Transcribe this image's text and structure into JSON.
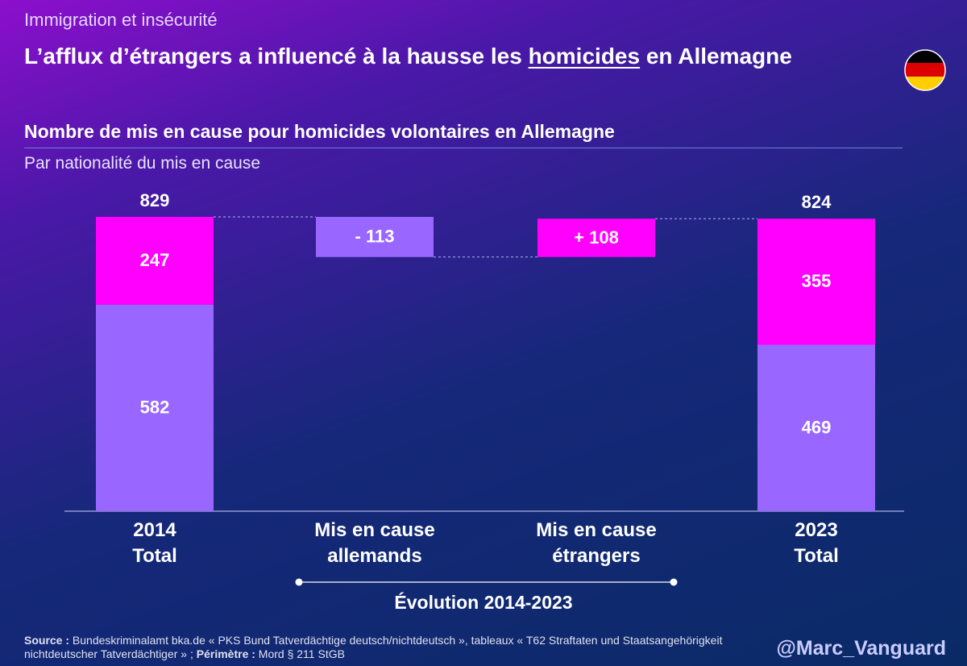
{
  "chart_data": {
    "type": "waterfall",
    "kicker": "Immigration et insécurité",
    "title": {
      "before": "L’afflux d’étrangers a influencé à la hausse les ",
      "underlined": "homicides",
      "after": " en Allemagne"
    },
    "subtitle": "Nombre de mis en cause pour homicides volontaires en Allemagne",
    "subtitle2": "Par nationalité du mis en cause",
    "categories": [
      "2014 Total",
      "Mis en cause allemands",
      "Mis en cause étrangers",
      "2023 Total"
    ],
    "series": [
      {
        "color": "#9966ff",
        "values": [
          582,
          -113,
          null,
          469
        ],
        "value_labels": [
          null,
          "- 113",
          null,
          null
        ]
      },
      {
        "color": "#ff00ff",
        "values": [
          247,
          null,
          108,
          355
        ],
        "value_labels": [
          null,
          null,
          "+ 108",
          null
        ]
      }
    ],
    "totals": [
      829,
      null,
      null,
      824
    ],
    "annotation": "Évolution 2014-2023",
    "source": {
      "label": "Source :",
      "text": " Bundeskriminalamt bka.de « PKS Bund Tatverdächtige deutsch/nichtdeutsch », tableaux « T62 Straftaten und Staatsangehörigkeit nichtdeutscher Tatverdächtiger »  ; ",
      "scope_label": "Périmètre :",
      "scope_text": " Mord § 211 StGB"
    },
    "handle": "@Marc_Vanguard"
  }
}
